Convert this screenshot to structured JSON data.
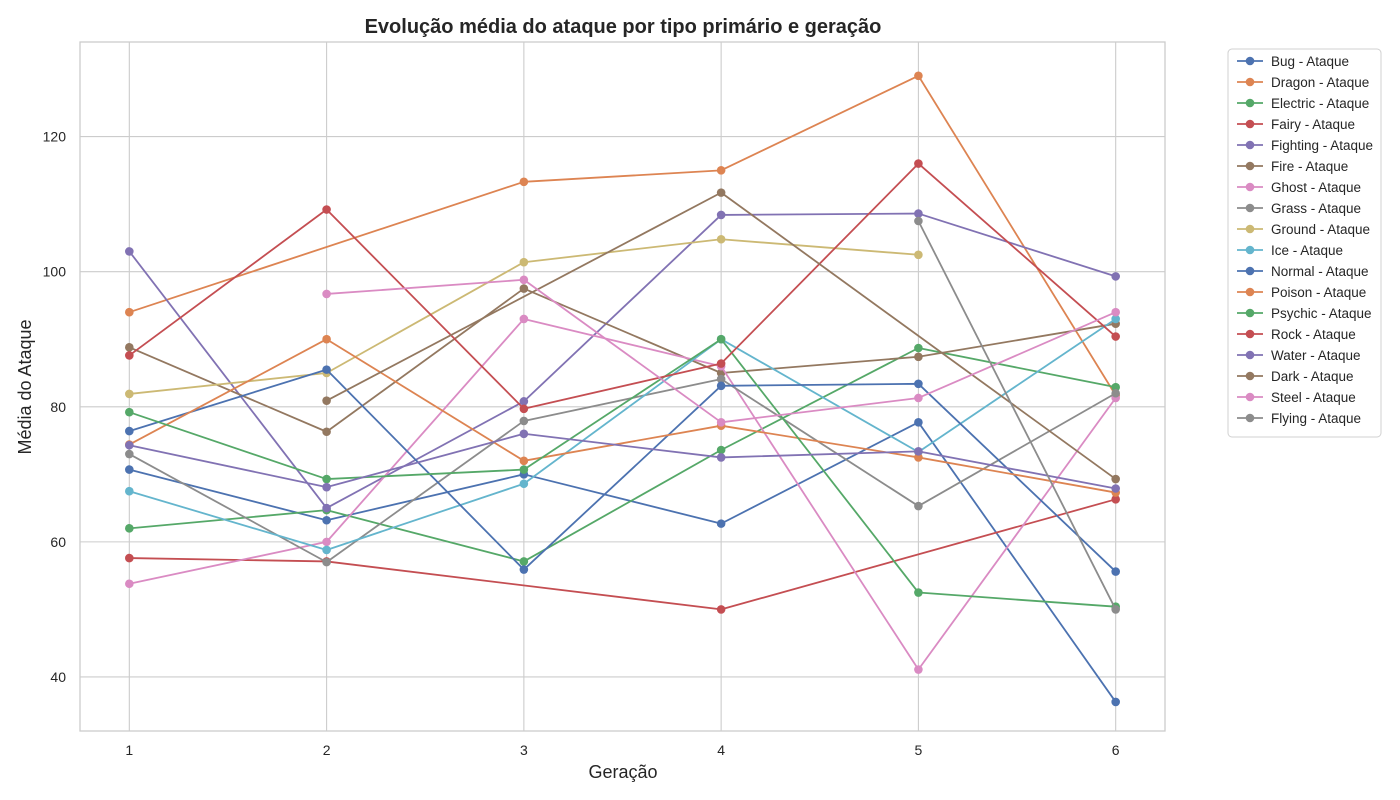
{
  "chart_data": {
    "type": "line",
    "title": "Evolução média do ataque por tipo primário e geração",
    "xlabel": "Geração",
    "ylabel": "Média do Ataque",
    "x": [
      1,
      2,
      3,
      4,
      5,
      6
    ],
    "xlim": [
      0.75,
      6.25
    ],
    "ylim": [
      32,
      134
    ],
    "yticks": [
      40,
      60,
      80,
      100,
      120
    ],
    "grid": true,
    "legend_position": "outside-top-right",
    "series": [
      {
        "name": "Bug - Ataque",
        "color": "#4c72b0",
        "values": [
          70.7,
          63.2,
          70.0,
          62.7,
          77.7,
          36.3
        ]
      },
      {
        "name": "Dragon - Ataque",
        "color": "#dd8452",
        "values": [
          94.0,
          null,
          113.3,
          115.0,
          129.0,
          81.7
        ]
      },
      {
        "name": "Electric - Ataque",
        "color": "#55a868",
        "values": [
          62.0,
          64.7,
          57.1,
          73.6,
          88.7,
          82.9
        ]
      },
      {
        "name": "Fairy - Ataque",
        "color": "#c44e52",
        "values": [
          57.6,
          57.1,
          null,
          50.0,
          null,
          66.3
        ]
      },
      {
        "name": "Fighting - Ataque",
        "color": "#8172b3",
        "values": [
          103.0,
          65.0,
          80.8,
          108.4,
          108.6,
          99.3
        ]
      },
      {
        "name": "Fire - Ataque",
        "color": "#937860",
        "values": [
          88.8,
          76.3,
          97.5,
          85.0,
          87.4,
          92.3
        ]
      },
      {
        "name": "Ghost - Ataque",
        "color": "#da8bc3",
        "values": [
          53.8,
          60.0,
          93.0,
          86.0,
          41.1,
          81.3
        ]
      },
      {
        "name": "Grass - Ataque",
        "color": "#8c8c8c",
        "values": [
          73.0,
          57.0,
          77.9,
          84.1,
          65.3,
          82.0
        ]
      },
      {
        "name": "Ground - Ataque",
        "color": "#ccb974",
        "values": [
          81.9,
          85.0,
          101.4,
          104.8,
          102.5,
          null
        ]
      },
      {
        "name": "Ice - Ataque",
        "color": "#64b5cd",
        "values": [
          67.5,
          58.8,
          68.6,
          90.0,
          73.3,
          93.0
        ]
      },
      {
        "name": "Normal - Ataque",
        "color": "#4c72b0",
        "values": [
          76.4,
          85.5,
          55.9,
          83.1,
          83.4,
          55.6
        ]
      },
      {
        "name": "Poison - Ataque",
        "color": "#dd8452",
        "values": [
          74.4,
          90.0,
          72.0,
          77.2,
          72.5,
          67.3
        ]
      },
      {
        "name": "Psychic - Ataque",
        "color": "#55a868",
        "values": [
          79.2,
          69.3,
          70.7,
          90.0,
          52.5,
          50.4
        ]
      },
      {
        "name": "Rock - Ataque",
        "color": "#c44e52",
        "values": [
          87.6,
          109.2,
          79.7,
          86.4,
          116.0,
          90.4
        ]
      },
      {
        "name": "Water - Ataque",
        "color": "#8172b3",
        "values": [
          74.3,
          68.1,
          76.0,
          72.5,
          73.4,
          67.9
        ]
      },
      {
        "name": "Dark - Ataque",
        "color": "#937860",
        "values": [
          null,
          80.9,
          null,
          111.7,
          null,
          69.3
        ]
      },
      {
        "name": "Steel - Ataque",
        "color": "#da8bc3",
        "values": [
          null,
          96.7,
          98.8,
          77.7,
          81.3,
          94.0
        ]
      },
      {
        "name": "Flying - Ataque",
        "color": "#8c8c8c",
        "values": [
          null,
          null,
          null,
          null,
          107.5,
          50.0
        ]
      }
    ]
  }
}
